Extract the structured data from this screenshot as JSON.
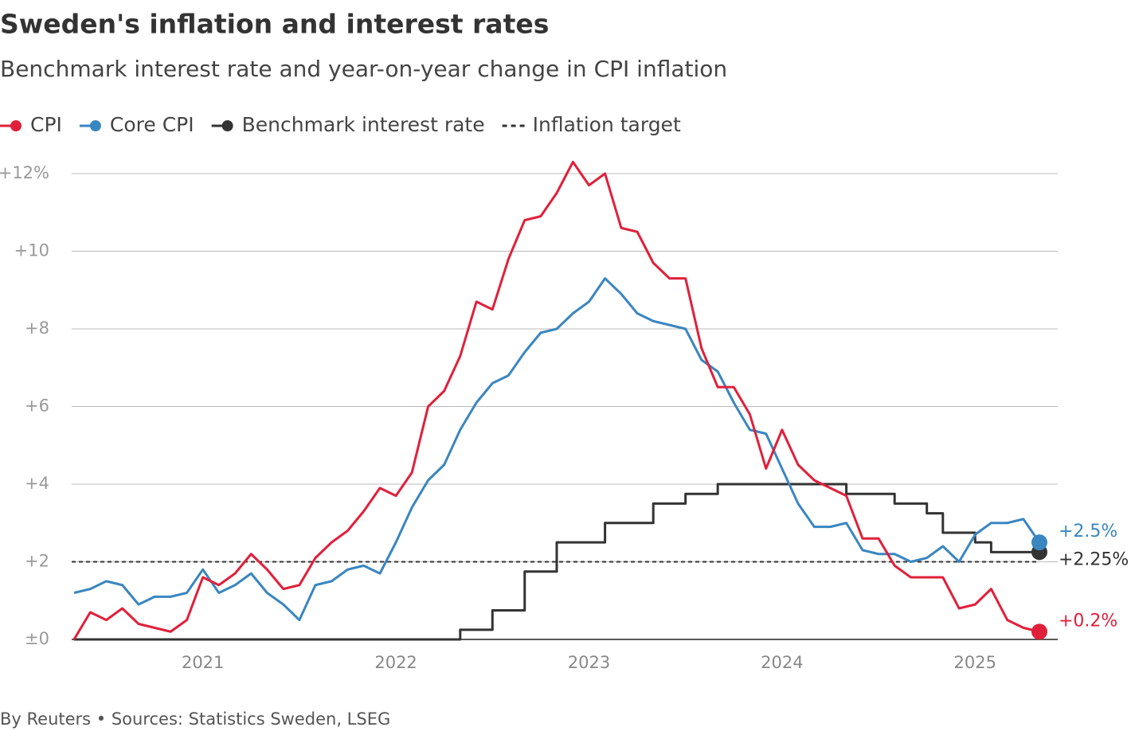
{
  "chart_data": {
    "type": "line",
    "title": "Sweden's inflation and interest rates",
    "subtitle": "Benchmark interest rate and year-on-year change in CPI inflation",
    "source": "By Reuters • Sources: Statistics Sweden, LSEG",
    "x": [
      2020.333,
      2020.417,
      2020.5,
      2020.583,
      2020.667,
      2020.75,
      2020.833,
      2020.917,
      2021,
      2021.083,
      2021.167,
      2021.25,
      2021.333,
      2021.417,
      2021.5,
      2021.583,
      2021.667,
      2021.75,
      2021.833,
      2021.917,
      2022,
      2022.083,
      2022.167,
      2022.25,
      2022.333,
      2022.417,
      2022.5,
      2022.583,
      2022.667,
      2022.75,
      2022.833,
      2022.917,
      2023,
      2023.083,
      2023.167,
      2023.25,
      2023.333,
      2023.417,
      2023.5,
      2023.583,
      2023.667,
      2023.75,
      2023.833,
      2023.917,
      2024,
      2024.083,
      2024.167,
      2024.25,
      2024.333,
      2024.417,
      2024.5,
      2024.583,
      2024.667,
      2024.75,
      2024.833,
      2024.917,
      2025,
      2025.083,
      2025.167,
      2025.25,
      2025.333
    ],
    "series": [
      {
        "name": "Benchmark interest rate",
        "color": "#333333",
        "step": true,
        "values": [
          0,
          0,
          0,
          0,
          0,
          0,
          0,
          0,
          0,
          0,
          0,
          0,
          0,
          0,
          0,
          0,
          0,
          0,
          0,
          0,
          0,
          0,
          0,
          0,
          0.25,
          0.25,
          0.75,
          0.75,
          1.75,
          1.75,
          2.5,
          2.5,
          2.5,
          3,
          3,
          3,
          3.5,
          3.5,
          3.75,
          3.75,
          4,
          4,
          4,
          4,
          4,
          4,
          4,
          4,
          3.75,
          3.75,
          3.75,
          3.5,
          3.5,
          3.25,
          2.75,
          2.75,
          2.5,
          2.25,
          2.25,
          2.25,
          2.25
        ],
        "value_labels": [
          null,
          null,
          null,
          null,
          null,
          null,
          null,
          null,
          null,
          null,
          null,
          null,
          null,
          null,
          null,
          null,
          null,
          null,
          null,
          null,
          null,
          null,
          null,
          null,
          null,
          null,
          null,
          null,
          null,
          null,
          null,
          null,
          null,
          null,
          null,
          null,
          null,
          null,
          null,
          null,
          null,
          null,
          null,
          null,
          null,
          null,
          null,
          null,
          null,
          null,
          null,
          null,
          null,
          null,
          null,
          null,
          null,
          null,
          null,
          null,
          "+2.25%"
        ]
      },
      {
        "name": "Core CPI",
        "color": "#3a86c0",
        "values": [
          1.2,
          1.3,
          1.5,
          1.4,
          0.9,
          1.1,
          1.1,
          1.2,
          1.8,
          1.2,
          1.4,
          1.7,
          1.2,
          0.9,
          0.5,
          1.4,
          1.5,
          1.8,
          1.9,
          1.7,
          2.5,
          3.4,
          4.1,
          4.5,
          5.4,
          6.1,
          6.6,
          6.8,
          7.4,
          7.9,
          8.0,
          8.4,
          8.7,
          9.3,
          8.9,
          8.4,
          8.2,
          8.1,
          8.0,
          7.2,
          6.9,
          6.1,
          5.4,
          5.3,
          4.4,
          3.5,
          2.9,
          2.9,
          3.0,
          2.3,
          2.2,
          2.2,
          2.0,
          2.1,
          2.4,
          2.0,
          2.7,
          3.0,
          3.0,
          3.1,
          2.5
        ],
        "value_labels": [
          null,
          null,
          null,
          null,
          null,
          null,
          null,
          null,
          null,
          null,
          null,
          null,
          null,
          null,
          null,
          null,
          null,
          null,
          null,
          null,
          null,
          null,
          null,
          null,
          null,
          null,
          null,
          null,
          null,
          null,
          null,
          null,
          null,
          null,
          null,
          null,
          null,
          null,
          null,
          null,
          null,
          null,
          null,
          null,
          null,
          null,
          null,
          null,
          null,
          null,
          null,
          null,
          null,
          null,
          null,
          null,
          null,
          null,
          null,
          null,
          "+2.5%"
        ]
      },
      {
        "name": "CPI",
        "color": "#e0203a",
        "values": [
          0,
          0.7,
          0.5,
          0.8,
          0.4,
          0.3,
          0.2,
          0.5,
          1.6,
          1.4,
          1.7,
          2.2,
          1.8,
          1.3,
          1.4,
          2.1,
          2.5,
          2.8,
          3.3,
          3.9,
          3.7,
          4.3,
          6.0,
          6.4,
          7.3,
          8.7,
          8.5,
          9.8,
          10.8,
          10.9,
          11.5,
          12.3,
          11.7,
          12.0,
          10.6,
          10.5,
          9.7,
          9.3,
          9.3,
          7.5,
          6.5,
          6.5,
          5.8,
          4.4,
          5.4,
          4.5,
          4.1,
          3.9,
          3.7,
          2.6,
          2.6,
          1.9,
          1.6,
          1.6,
          1.6,
          0.8,
          0.9,
          1.3,
          0.5,
          0.3,
          0.2
        ],
        "value_labels": [
          null,
          null,
          null,
          null,
          null,
          null,
          null,
          null,
          null,
          null,
          null,
          null,
          null,
          null,
          null,
          null,
          null,
          null,
          null,
          null,
          null,
          null,
          null,
          null,
          null,
          null,
          null,
          null,
          null,
          null,
          null,
          null,
          null,
          null,
          null,
          null,
          null,
          null,
          null,
          null,
          null,
          null,
          null,
          null,
          null,
          null,
          null,
          null,
          null,
          null,
          null,
          null,
          null,
          null,
          null,
          null,
          null,
          null,
          null,
          null,
          "+0.2%"
        ]
      }
    ],
    "target": {
      "name": "Inflation target",
      "value": 2,
      "color": "#333333"
    },
    "legend": [
      "CPI",
      "Core CPI",
      "Benchmark interest rate",
      "Inflation target"
    ],
    "xlim": [
      2020.333,
      2025.333
    ],
    "xticks": [
      2021,
      2022,
      2023,
      2024,
      2025
    ],
    "ylim": [
      0,
      12
    ],
    "yticks": [
      {
        "value": 0,
        "label": "±0"
      },
      {
        "value": 2,
        "label": "+2"
      },
      {
        "value": 4,
        "label": "+4"
      },
      {
        "value": 6,
        "label": "+6"
      },
      {
        "value": 8,
        "label": "+8"
      },
      {
        "value": 10,
        "label": "+10"
      },
      {
        "value": 12,
        "label": "+12%"
      }
    ],
    "grid": true
  }
}
